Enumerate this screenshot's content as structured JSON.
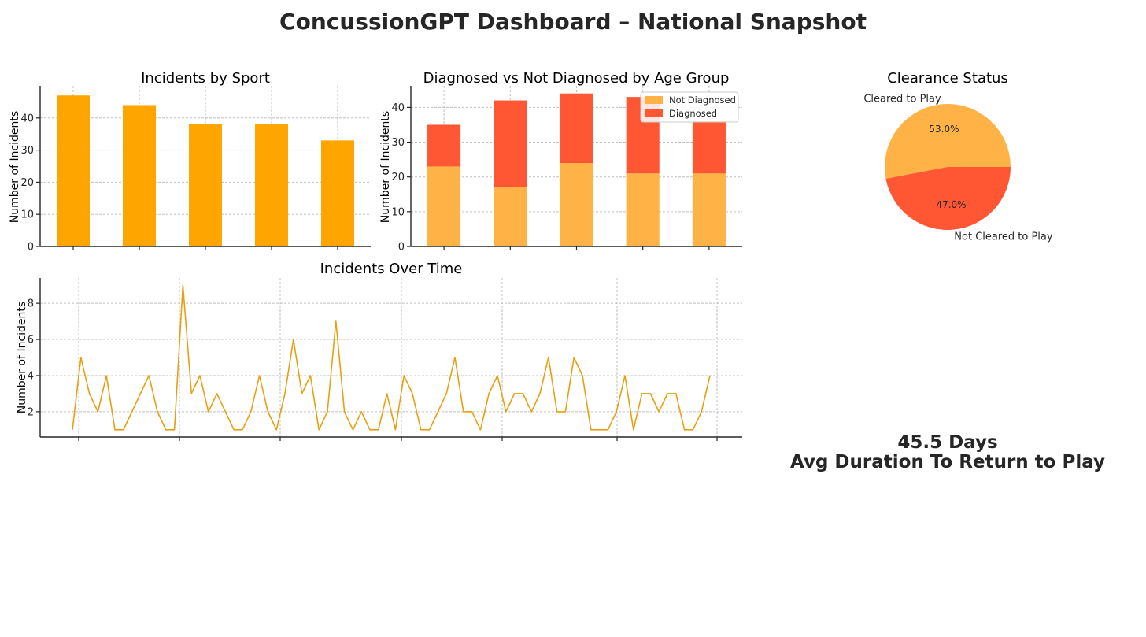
{
  "dashboard": {
    "title": "ConcussionGPT Dashboard – National Snapshot",
    "kpi_value": "45.5 Days",
    "kpi_label": "Avg Duration To Return to Play"
  },
  "colors": {
    "orange": "#ffa500",
    "light_orange": "#ffb347",
    "red_orange": "#ff5733",
    "line": "#e8a010"
  },
  "chart_data": [
    {
      "id": "sport",
      "type": "bar",
      "title": "Incidents by Sport",
      "xlabel": "",
      "ylabel": "Number of Incidents",
      "values": [
        47,
        44,
        38,
        38,
        33
      ],
      "ylim": [
        0,
        50
      ],
      "yticks": [
        0,
        10,
        20,
        30,
        40
      ],
      "grid": true
    },
    {
      "id": "age",
      "type": "bar",
      "stacked": true,
      "title": "Diagnosed vs Not Diagnosed by Age Group",
      "xlabel": "",
      "ylabel": "Number of Incidents",
      "series": [
        {
          "name": "Not Diagnosed",
          "values": [
            23,
            17,
            24,
            21,
            21
          ]
        },
        {
          "name": "Diagnosed",
          "values": [
            12,
            25,
            20,
            22,
            15
          ]
        }
      ],
      "ylim": [
        0,
        46.2
      ],
      "yticks": [
        0,
        10,
        20,
        30,
        40
      ],
      "legend": "top-right",
      "grid": true
    },
    {
      "id": "clearance",
      "type": "pie",
      "title": "Clearance Status",
      "slices": [
        {
          "label": "Cleared to Play",
          "value": 53.0,
          "pct_label": "53.0%"
        },
        {
          "label": "Not Cleared to Play",
          "value": 47.0,
          "pct_label": "47.0%"
        }
      ]
    },
    {
      "id": "time",
      "type": "line",
      "title": "Incidents Over Time",
      "xlabel": "",
      "ylabel": "Number of Incidents",
      "values": [
        1,
        5,
        3,
        2,
        4,
        1,
        1,
        2,
        3,
        4,
        2,
        1,
        1,
        9,
        3,
        4,
        2,
        3,
        2,
        1,
        1,
        2,
        4,
        2,
        1,
        3,
        6,
        3,
        4,
        1,
        2,
        7,
        2,
        1,
        2,
        1,
        1,
        3,
        1,
        4,
        3,
        1,
        1,
        2,
        3,
        5,
        2,
        2,
        1,
        3,
        4,
        2,
        3,
        3,
        2,
        3,
        5,
        2,
        2,
        5,
        4,
        1,
        1,
        1,
        2,
        4,
        1,
        3,
        3,
        2,
        3,
        3,
        1,
        1,
        2,
        4
      ],
      "ylim": [
        0.6,
        9.4
      ],
      "yticks": [
        2,
        4,
        6,
        8
      ],
      "grid": true
    }
  ]
}
